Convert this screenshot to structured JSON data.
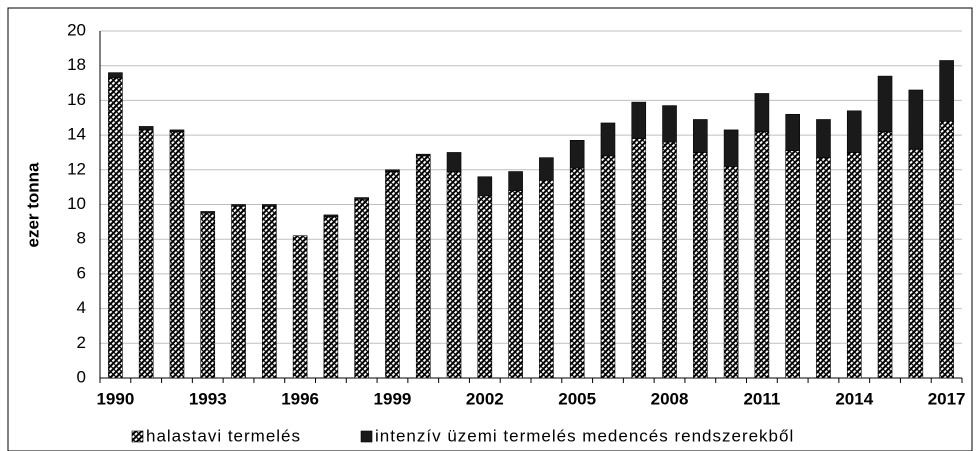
{
  "chart_data": {
    "type": "stacked_bar",
    "ylabel": "ezer tonna",
    "categories": [
      "1990",
      null,
      null,
      "1993",
      null,
      null,
      "1996",
      null,
      null,
      "1999",
      null,
      null,
      "2002",
      null,
      null,
      "2005",
      null,
      null,
      "2008",
      null,
      null,
      "2011",
      null,
      null,
      "2014",
      null,
      null,
      "2017"
    ],
    "series": [
      {
        "name": "halastavi termelés",
        "color": "#000000",
        "pattern": "hatch",
        "values": [
          17.3,
          14.3,
          14.2,
          9.5,
          9.9,
          9.9,
          8.2,
          9.3,
          10.3,
          11.9,
          12.8,
          11.9,
          10.5,
          10.8,
          11.4,
          12.1,
          12.8,
          13.8,
          13.6,
          13.0,
          12.2,
          14.2,
          13.1,
          12.7,
          13.0,
          14.2,
          13.2,
          14.8
        ]
      },
      {
        "name": "intenzív üzemi termelés medencés rendszerekből",
        "color": "#1a1a1a",
        "pattern": "solid",
        "values": [
          0.3,
          0.2,
          0.1,
          0.1,
          0.1,
          0.1,
          0.0,
          0.1,
          0.1,
          0.1,
          0.1,
          1.1,
          1.1,
          1.1,
          1.3,
          1.6,
          1.9,
          2.1,
          2.1,
          1.9,
          2.1,
          2.2,
          2.1,
          2.2,
          2.4,
          3.2,
          3.4,
          3.5
        ]
      }
    ],
    "ylim": [
      0,
      20
    ],
    "yticks": [
      0,
      2,
      4,
      6,
      8,
      10,
      12,
      14,
      16,
      18,
      20
    ],
    "grid": true,
    "legend": "bottom"
  }
}
